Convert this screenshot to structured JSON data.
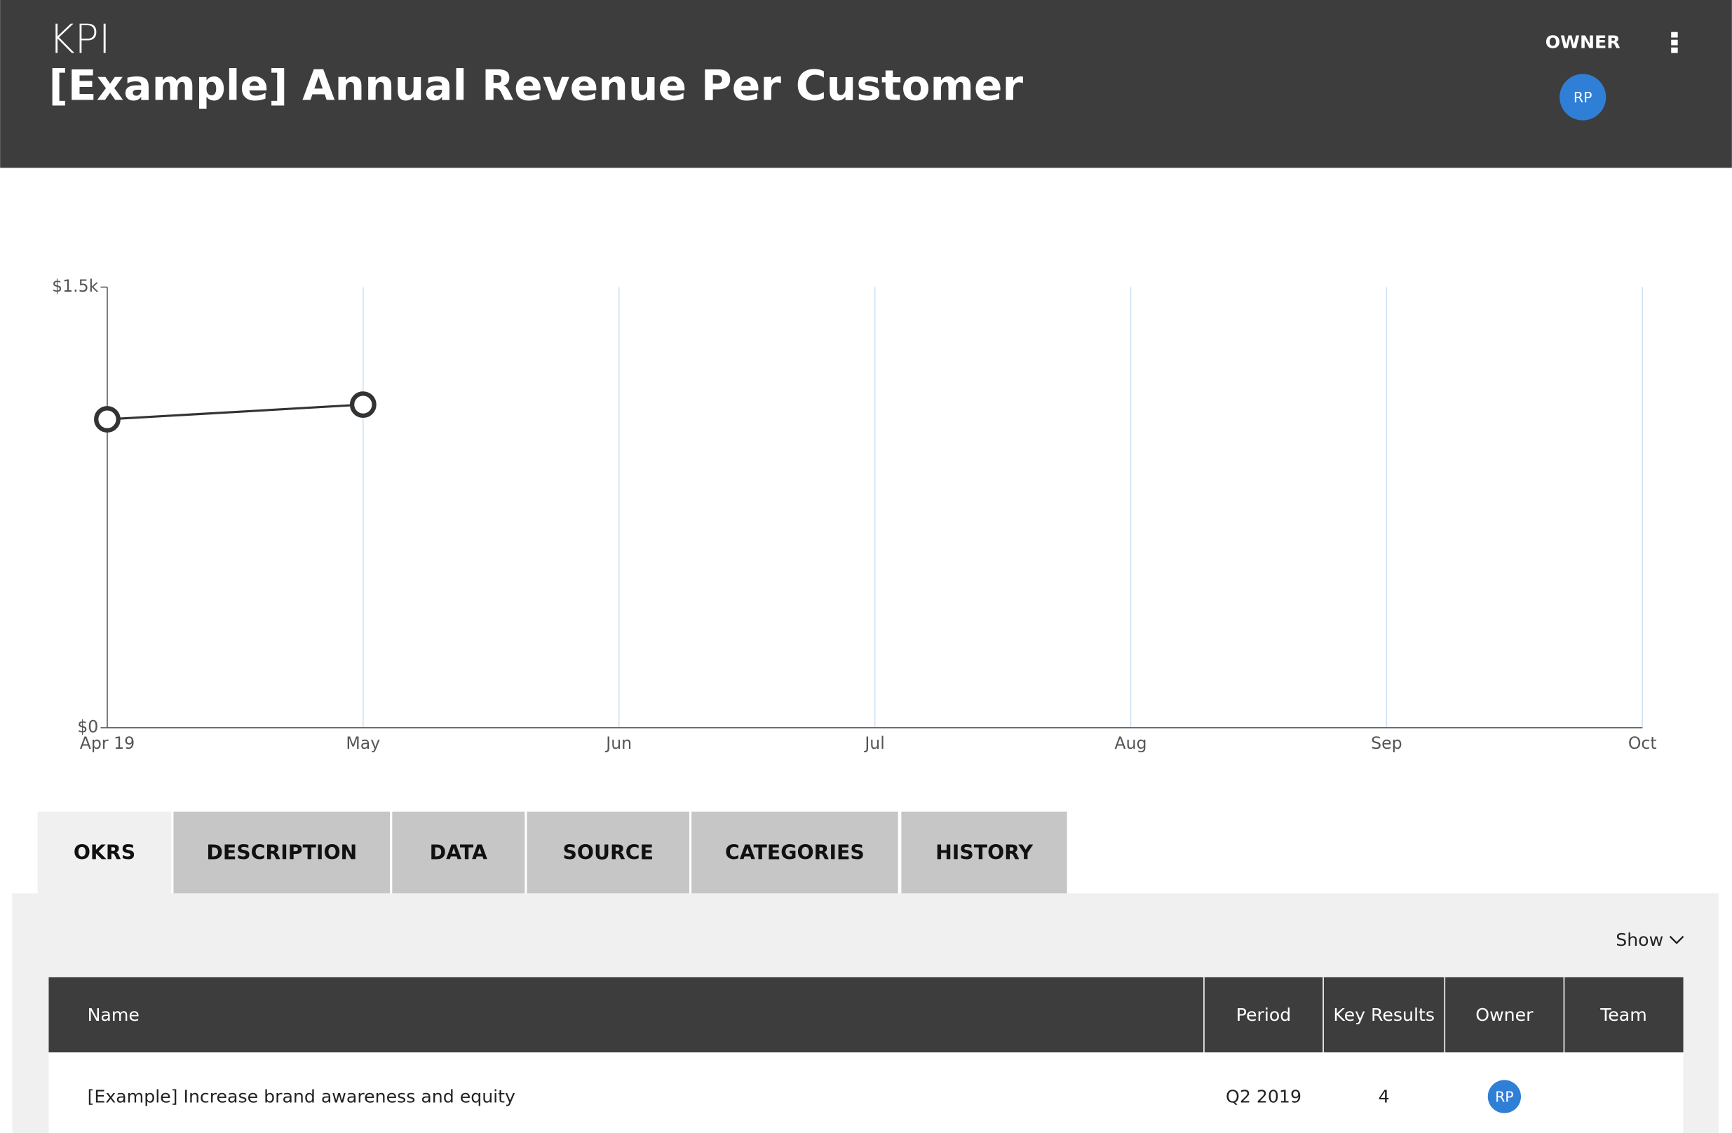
{
  "header": {
    "label": "KPI",
    "title": "[Example] Annual Revenue Per Customer",
    "owner_label": "OWNER",
    "owner_initials": "RP"
  },
  "chart_data": {
    "type": "line",
    "categories": [
      "Apr 19",
      "May",
      "Jun",
      "Jul",
      "Aug",
      "Sep",
      "Oct"
    ],
    "values": [
      1050,
      1100,
      null,
      null,
      null,
      null,
      null
    ],
    "color": "#333333",
    "ylim": [
      0,
      1500
    ],
    "yticks": [
      {
        "value": 0,
        "label": "$0"
      },
      {
        "value": 1500,
        "label": "$1.5k"
      }
    ],
    "grid": true
  },
  "tabs": [
    "OKRS",
    "DESCRIPTION",
    "DATA",
    "SOURCE",
    "CATEGORIES",
    "HISTORY"
  ],
  "table": {
    "show": "Show",
    "columns": [
      "Name",
      "Period",
      "Key Results",
      "Owner",
      "Team"
    ],
    "rows": [
      [
        "[Example] Increase brand awareness and equity",
        "Q2 2019",
        "4",
        "RP"
      ]
    ]
  }
}
